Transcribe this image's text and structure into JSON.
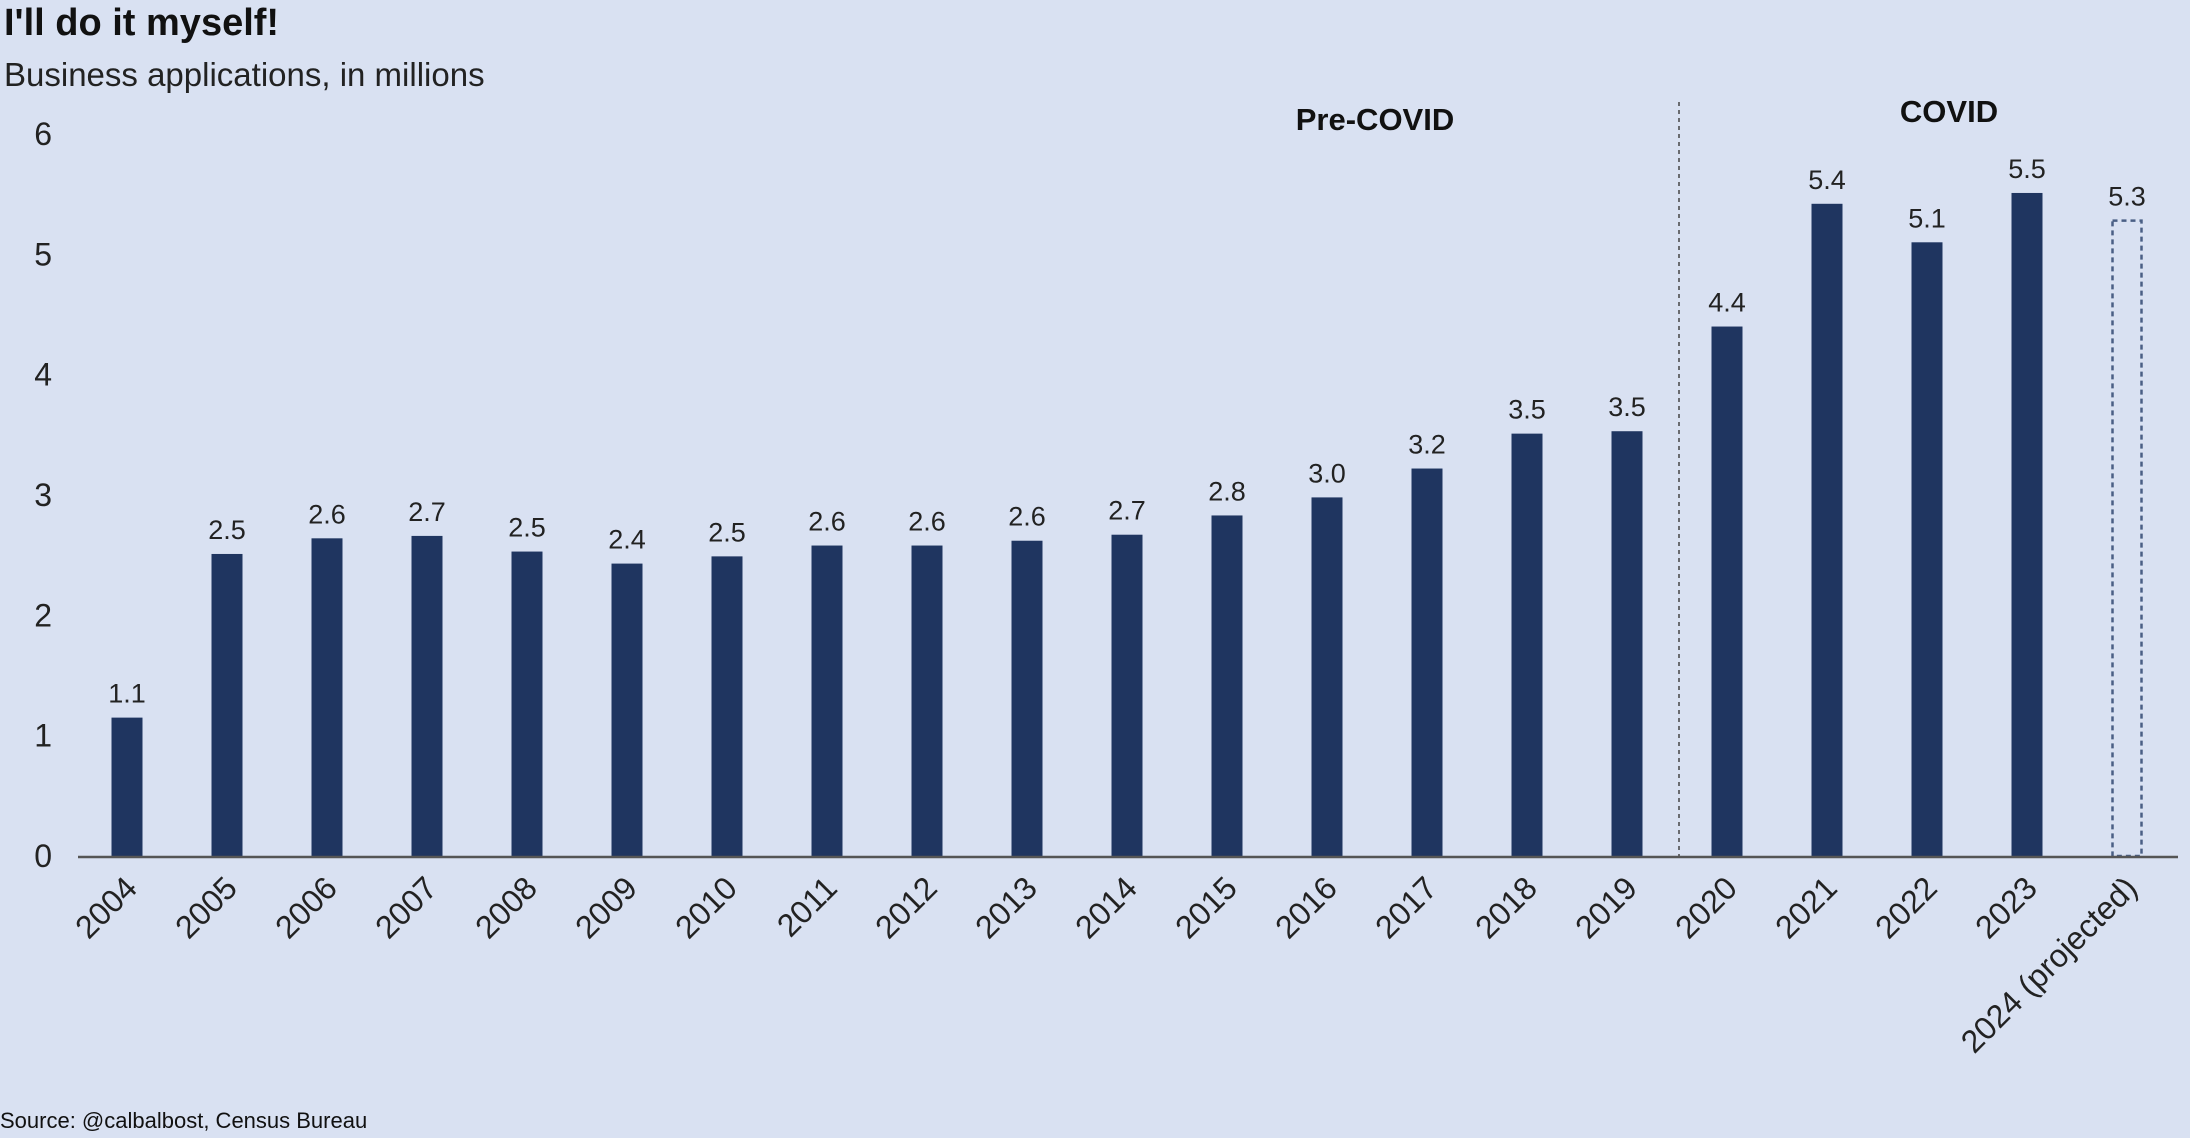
{
  "title": "I'll do it myself!",
  "subtitle": "Business applications, in millions",
  "source": "Source: @calbalbost, Census Bureau",
  "chart_data": {
    "type": "bar",
    "categories": [
      "2004",
      "2005",
      "2006",
      "2007",
      "2008",
      "2009",
      "2010",
      "2011",
      "2012",
      "2013",
      "2014",
      "2015",
      "2016",
      "2017",
      "2018",
      "2019",
      "2020",
      "2021",
      "2022",
      "2023",
      "2024 (projected)"
    ],
    "values": [
      1.1,
      2.5,
      2.6,
      2.7,
      2.5,
      2.4,
      2.5,
      2.6,
      2.6,
      2.6,
      2.7,
      2.8,
      3.0,
      3.2,
      3.5,
      3.5,
      4.4,
      5.4,
      5.1,
      5.5,
      5.3
    ],
    "plot_values": [
      1.15,
      2.51,
      2.64,
      2.66,
      2.53,
      2.43,
      2.49,
      2.58,
      2.58,
      2.62,
      2.67,
      2.83,
      2.98,
      3.22,
      3.51,
      3.53,
      4.4,
      5.42,
      5.1,
      5.51,
      5.28
    ],
    "data_labels": [
      "1.1",
      "2.5",
      "2.6",
      "2.7",
      "2.5",
      "2.4",
      "2.5",
      "2.6",
      "2.6",
      "2.6",
      "2.7",
      "2.8",
      "3.0",
      "3.2",
      "3.5",
      "3.5",
      "4.4",
      "5.4",
      "5.1",
      "5.5",
      "5.3"
    ],
    "projected": [
      false,
      false,
      false,
      false,
      false,
      false,
      false,
      false,
      false,
      false,
      false,
      false,
      false,
      false,
      false,
      false,
      false,
      false,
      false,
      false,
      true
    ],
    "yticks": [
      0,
      1,
      2,
      3,
      4,
      5,
      6
    ],
    "ylim": [
      0,
      6
    ],
    "xlabel": "",
    "ylabel": "",
    "grid": false,
    "annotations": [
      "Pre-COVID",
      "COVID"
    ],
    "divider_between": [
      "2019",
      "2020"
    ],
    "bar_color": "#1f3560",
    "projected_outline_color": "#4a5f85",
    "axis_color": "#555555",
    "background": "#d9e1f2"
  }
}
